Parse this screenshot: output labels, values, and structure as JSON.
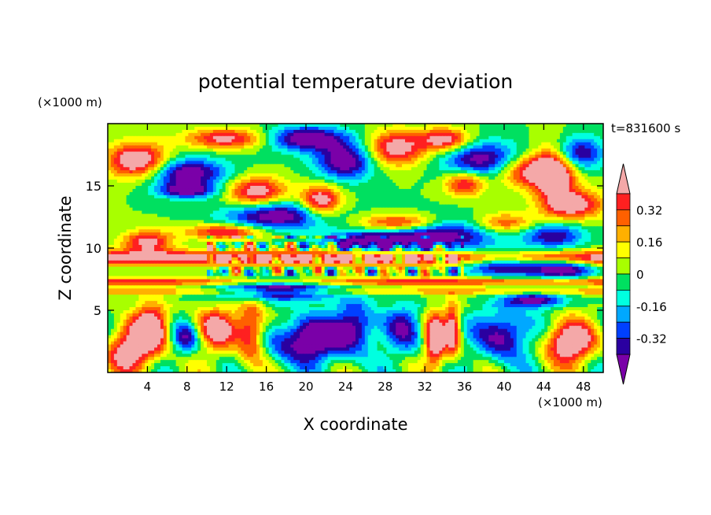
{
  "chart_data": {
    "type": "heatmap",
    "title": "potential temperature deviation",
    "time_label": "t=831600 s",
    "xlabel": "X coordinate",
    "ylabel": "Z coordinate",
    "x_unit": "(×1000 m)",
    "y_unit": "(×1000 m)",
    "xlim": [
      0,
      50
    ],
    "ylim": [
      0,
      20
    ],
    "x_ticks": [
      4,
      8,
      12,
      16,
      20,
      24,
      28,
      32,
      36,
      40,
      44,
      48
    ],
    "y_ticks": [
      5,
      10,
      15
    ],
    "colorbar": {
      "levels": [
        -0.4,
        -0.32,
        -0.24,
        -0.16,
        -0.08,
        0,
        0.08,
        0.16,
        0.24,
        0.32,
        0.4
      ],
      "labels": [
        "0.32",
        "0.16",
        "0",
        "-0.16",
        "-0.32"
      ],
      "label_values": [
        0.32,
        0.16,
        0,
        -0.16,
        -0.32
      ],
      "colors": [
        "#7a00a8",
        "#2a00a0",
        "#0040ff",
        "#00a8ff",
        "#00ffe0",
        "#00e060",
        "#a8ff00",
        "#ffff00",
        "#ffb000",
        "#ff6000",
        "#ff2020",
        "#f4a8a8"
      ],
      "extend": "both"
    }
  }
}
